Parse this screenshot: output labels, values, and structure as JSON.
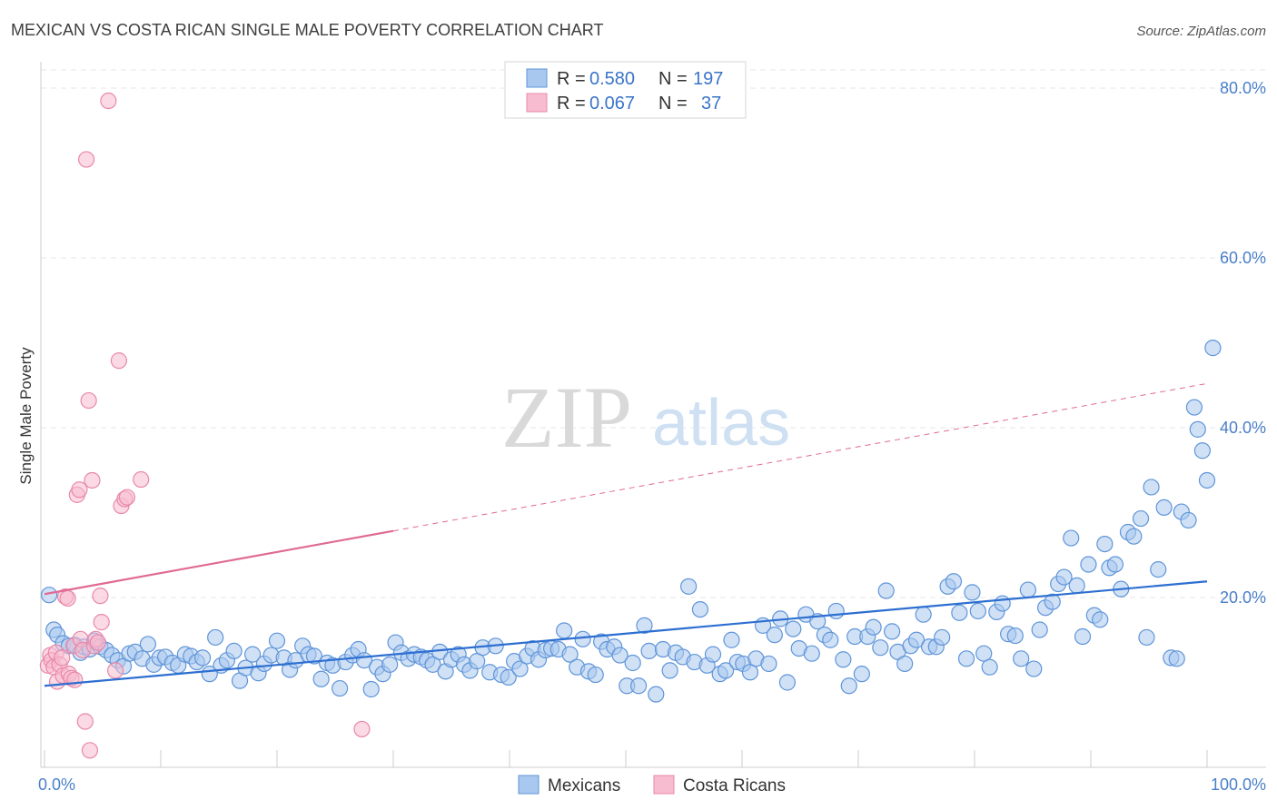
{
  "title": "MEXICAN VS COSTA RICAN SINGLE MALE POVERTY CORRELATION CHART",
  "source": "Source: ZipAtlas.com",
  "watermark": {
    "zip": "ZIP",
    "atlas": "atlas"
  },
  "colors": {
    "mexicans_fill": "#a9c8ef",
    "mexicans_stroke": "#5f95d9",
    "mexicans_line": "#2d6fd1",
    "costaricans_fill": "#f7bcd0",
    "costaricans_stroke": "#e888a8",
    "costaricans_line": "#e06a93",
    "tick_label": "#4a7fc9",
    "grid": "#e5e5e5"
  },
  "legend": {
    "rows": [
      {
        "r_label": "R =",
        "r_value": "0.580",
        "n_label": "N =",
        "n_value": "197"
      },
      {
        "r_label": "R =",
        "r_value": "0.067",
        "n_label": "N =",
        "n_value": "37"
      }
    ]
  },
  "bottom_legend": [
    "Mexicans",
    "Costa Ricans"
  ],
  "chart_data": {
    "type": "scatter",
    "title": "MEXICAN VS COSTA RICAN SINGLE MALE POVERTY CORRELATION CHART",
    "xlabel": "",
    "ylabel": "Single Male Poverty",
    "xlim": [
      0,
      100
    ],
    "ylim": [
      0,
      85
    ],
    "x_tick_labels": [
      "0.0%",
      "100.0%"
    ],
    "y_ticks": [
      20,
      40,
      60,
      80
    ],
    "y_tick_labels": [
      "20.0%",
      "40.0%",
      "60.0%",
      "80.0%"
    ],
    "grid": true,
    "legend_position": "top-center",
    "series": [
      {
        "name": "Mexicans",
        "trend": {
          "x0": 0,
          "y0": 9.6,
          "x1": 100,
          "y1": 21.9,
          "solid_until": 100
        },
        "points": [
          [
            0.4,
            20.3
          ],
          [
            0.8,
            16.2
          ],
          [
            1.1,
            15.6
          ],
          [
            1.6,
            14.6
          ],
          [
            2.1,
            14.3
          ],
          [
            2.6,
            14.4
          ],
          [
            3.1,
            13.5
          ],
          [
            3.4,
            14.2
          ],
          [
            3.9,
            13.9
          ],
          [
            4.3,
            14.9
          ],
          [
            4.8,
            14.2
          ],
          [
            5.3,
            13.8
          ],
          [
            5.8,
            13.2
          ],
          [
            6.3,
            12.6
          ],
          [
            6.8,
            11.9
          ],
          [
            7.3,
            13.4
          ],
          [
            7.8,
            13.6
          ],
          [
            8.4,
            12.8
          ],
          [
            8.9,
            14.5
          ],
          [
            9.4,
            12.1
          ],
          [
            9.9,
            12.9
          ],
          [
            10.4,
            13.0
          ],
          [
            11.0,
            12.3
          ],
          [
            11.5,
            12.0
          ],
          [
            12.1,
            13.3
          ],
          [
            12.6,
            13.1
          ],
          [
            13.1,
            12.4
          ],
          [
            13.6,
            12.9
          ],
          [
            14.2,
            11.0
          ],
          [
            14.7,
            15.3
          ],
          [
            15.2,
            12.0
          ],
          [
            15.7,
            12.6
          ],
          [
            16.3,
            13.7
          ],
          [
            16.8,
            10.2
          ],
          [
            17.3,
            11.7
          ],
          [
            17.9,
            13.3
          ],
          [
            18.4,
            11.1
          ],
          [
            18.9,
            12.2
          ],
          [
            19.5,
            13.2
          ],
          [
            20.0,
            14.9
          ],
          [
            20.6,
            12.9
          ],
          [
            21.1,
            11.5
          ],
          [
            21.6,
            12.6
          ],
          [
            22.2,
            14.3
          ],
          [
            22.7,
            13.3
          ],
          [
            23.2,
            13.1
          ],
          [
            23.8,
            10.4
          ],
          [
            24.3,
            12.3
          ],
          [
            24.8,
            12.0
          ],
          [
            25.4,
            9.3
          ],
          [
            25.9,
            12.4
          ],
          [
            26.5,
            13.2
          ],
          [
            27.0,
            13.9
          ],
          [
            27.5,
            12.6
          ],
          [
            28.1,
            9.2
          ],
          [
            28.6,
            11.8
          ],
          [
            29.1,
            11.0
          ],
          [
            29.7,
            12.1
          ],
          [
            30.2,
            14.7
          ],
          [
            30.7,
            13.5
          ],
          [
            31.3,
            12.8
          ],
          [
            31.8,
            13.3
          ],
          [
            32.4,
            13.0
          ],
          [
            32.9,
            12.6
          ],
          [
            33.4,
            12.1
          ],
          [
            34.0,
            13.6
          ],
          [
            34.5,
            11.3
          ],
          [
            35.0,
            12.7
          ],
          [
            35.6,
            13.3
          ],
          [
            36.1,
            12.1
          ],
          [
            36.6,
            11.4
          ],
          [
            37.2,
            12.5
          ],
          [
            37.7,
            14.1
          ],
          [
            38.3,
            11.2
          ],
          [
            38.8,
            14.3
          ],
          [
            39.3,
            10.9
          ],
          [
            39.9,
            10.6
          ],
          [
            40.4,
            12.5
          ],
          [
            40.9,
            11.6
          ],
          [
            41.5,
            13.1
          ],
          [
            42.0,
            14.0
          ],
          [
            42.5,
            12.7
          ],
          [
            43.1,
            13.8
          ],
          [
            43.6,
            14.0
          ],
          [
            44.2,
            13.9
          ],
          [
            44.7,
            16.1
          ],
          [
            45.2,
            13.3
          ],
          [
            45.8,
            11.8
          ],
          [
            46.3,
            15.1
          ],
          [
            46.8,
            11.3
          ],
          [
            47.4,
            10.9
          ],
          [
            47.9,
            14.8
          ],
          [
            48.4,
            13.9
          ],
          [
            49.0,
            14.2
          ],
          [
            49.5,
            13.2
          ],
          [
            50.1,
            9.6
          ],
          [
            50.6,
            12.3
          ],
          [
            51.1,
            9.6
          ],
          [
            51.6,
            16.7
          ],
          [
            52.0,
            13.7
          ],
          [
            52.6,
            8.6
          ],
          [
            53.2,
            13.9
          ],
          [
            53.8,
            11.4
          ],
          [
            54.3,
            13.5
          ],
          [
            54.9,
            13.0
          ],
          [
            55.4,
            21.3
          ],
          [
            55.9,
            12.4
          ],
          [
            56.4,
            18.6
          ],
          [
            57.0,
            12.0
          ],
          [
            57.5,
            13.3
          ],
          [
            58.1,
            11.0
          ],
          [
            58.6,
            11.4
          ],
          [
            59.1,
            15.0
          ],
          [
            59.6,
            12.4
          ],
          [
            60.1,
            12.2
          ],
          [
            60.7,
            11.2
          ],
          [
            61.2,
            12.8
          ],
          [
            61.8,
            16.7
          ],
          [
            62.3,
            12.2
          ],
          [
            62.8,
            15.6
          ],
          [
            63.3,
            17.5
          ],
          [
            63.9,
            10.0
          ],
          [
            64.4,
            16.3
          ],
          [
            64.9,
            14.0
          ],
          [
            65.5,
            18.0
          ],
          [
            66.0,
            13.4
          ],
          [
            66.5,
            17.2
          ],
          [
            67.1,
            15.6
          ],
          [
            67.6,
            15.0
          ],
          [
            68.1,
            18.4
          ],
          [
            68.7,
            12.7
          ],
          [
            69.2,
            9.6
          ],
          [
            69.7,
            15.4
          ],
          [
            70.3,
            11.0
          ],
          [
            70.8,
            15.4
          ],
          [
            71.3,
            16.5
          ],
          [
            71.9,
            14.1
          ],
          [
            72.4,
            20.8
          ],
          [
            72.9,
            16.0
          ],
          [
            73.4,
            13.6
          ],
          [
            74.0,
            12.2
          ],
          [
            74.5,
            14.3
          ],
          [
            75.0,
            15.0
          ],
          [
            75.6,
            18.0
          ],
          [
            76.1,
            14.2
          ],
          [
            76.7,
            14.2
          ],
          [
            77.2,
            15.3
          ],
          [
            77.7,
            21.3
          ],
          [
            78.2,
            21.9
          ],
          [
            78.7,
            18.2
          ],
          [
            79.3,
            12.8
          ],
          [
            79.8,
            20.6
          ],
          [
            80.3,
            18.4
          ],
          [
            80.8,
            13.4
          ],
          [
            81.3,
            11.8
          ],
          [
            81.9,
            18.3
          ],
          [
            82.4,
            19.3
          ],
          [
            82.9,
            15.7
          ],
          [
            83.5,
            15.5
          ],
          [
            84.0,
            12.8
          ],
          [
            84.6,
            20.9
          ],
          [
            85.1,
            11.6
          ],
          [
            85.6,
            16.2
          ],
          [
            86.1,
            18.8
          ],
          [
            86.7,
            19.5
          ],
          [
            87.2,
            21.6
          ],
          [
            87.7,
            22.4
          ],
          [
            88.3,
            27.0
          ],
          [
            88.8,
            21.4
          ],
          [
            89.3,
            15.4
          ],
          [
            89.8,
            23.9
          ],
          [
            90.3,
            17.9
          ],
          [
            90.8,
            17.4
          ],
          [
            91.2,
            26.3
          ],
          [
            91.6,
            23.5
          ],
          [
            92.1,
            23.9
          ],
          [
            92.6,
            21.0
          ],
          [
            93.2,
            27.7
          ],
          [
            93.7,
            27.2
          ],
          [
            94.3,
            29.3
          ],
          [
            94.8,
            15.3
          ],
          [
            95.2,
            33.0
          ],
          [
            95.8,
            23.3
          ],
          [
            96.3,
            30.6
          ],
          [
            96.9,
            12.9
          ],
          [
            97.4,
            12.8
          ],
          [
            97.8,
            30.1
          ],
          [
            98.4,
            29.1
          ],
          [
            98.9,
            42.4
          ],
          [
            99.2,
            39.8
          ],
          [
            99.6,
            37.3
          ],
          [
            100.0,
            33.8
          ],
          [
            100.5,
            49.4
          ]
        ]
      },
      {
        "name": "Costa Ricans",
        "trend": {
          "x0": 0,
          "y0": 20.4,
          "x1": 100,
          "y1": 45.2,
          "solid_until": 30
        },
        "points": [
          [
            0.3,
            12.0
          ],
          [
            0.5,
            13.2
          ],
          [
            0.6,
            12.6
          ],
          [
            0.8,
            11.8
          ],
          [
            1.0,
            13.5
          ],
          [
            1.1,
            10.1
          ],
          [
            1.3,
            12.1
          ],
          [
            1.5,
            12.9
          ],
          [
            1.6,
            10.8
          ],
          [
            1.8,
            20.1
          ],
          [
            2.0,
            19.9
          ],
          [
            2.1,
            11.0
          ],
          [
            2.3,
            10.5
          ],
          [
            2.5,
            14.3
          ],
          [
            2.6,
            10.3
          ],
          [
            2.8,
            32.1
          ],
          [
            3.0,
            32.7
          ],
          [
            3.1,
            15.1
          ],
          [
            3.3,
            13.8
          ],
          [
            3.5,
            5.4
          ],
          [
            3.6,
            71.6
          ],
          [
            3.8,
            43.2
          ],
          [
            3.9,
            2.0
          ],
          [
            4.1,
            33.8
          ],
          [
            4.3,
            14.3
          ],
          [
            4.4,
            15.1
          ],
          [
            4.6,
            14.7
          ],
          [
            4.8,
            20.2
          ],
          [
            4.9,
            17.1
          ],
          [
            5.5,
            78.5
          ],
          [
            6.1,
            11.4
          ],
          [
            6.4,
            47.9
          ],
          [
            6.6,
            30.8
          ],
          [
            6.9,
            31.6
          ],
          [
            7.1,
            31.8
          ],
          [
            8.3,
            33.9
          ],
          [
            27.3,
            4.5
          ]
        ]
      }
    ]
  }
}
